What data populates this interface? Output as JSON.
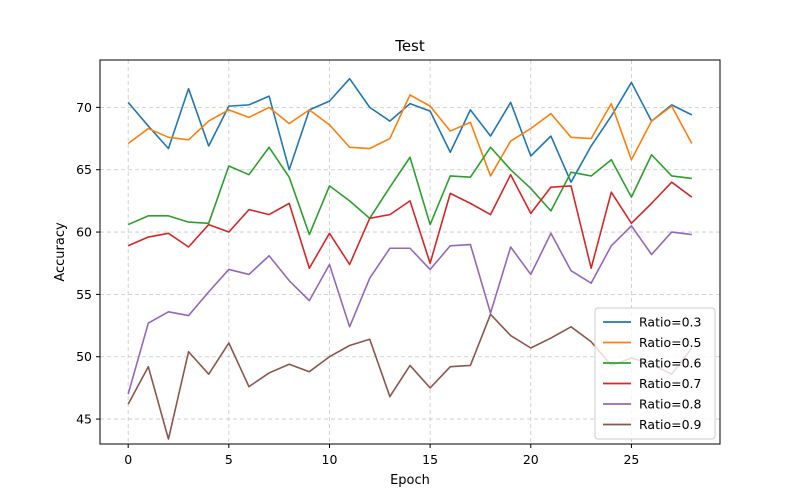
{
  "chart_data": {
    "type": "line",
    "title": "Test",
    "xlabel": "Epoch",
    "ylabel": "Accuracy",
    "xlim": [
      -1.4,
      29.4
    ],
    "ylim": [
      43.0,
      73.8
    ],
    "xticks": [
      0,
      5,
      10,
      15,
      20,
      25
    ],
    "yticks": [
      45,
      50,
      55,
      60,
      65,
      70
    ],
    "grid": true,
    "legend_position": "lower-right",
    "x": [
      0,
      1,
      2,
      3,
      4,
      5,
      6,
      7,
      8,
      9,
      10,
      11,
      12,
      13,
      14,
      15,
      16,
      17,
      18,
      19,
      20,
      21,
      22,
      23,
      24,
      25,
      26,
      27,
      28
    ],
    "series": [
      {
        "name": "Ratio=0.3",
        "color": "#1f77b4",
        "values": [
          70.4,
          68.5,
          66.7,
          71.5,
          66.9,
          70.1,
          70.2,
          70.9,
          65.0,
          69.8,
          70.5,
          72.3,
          70.0,
          68.9,
          70.3,
          69.7,
          66.4,
          69.8,
          67.7,
          70.4,
          66.1,
          67.7,
          64.0,
          66.9,
          69.3,
          72.0,
          68.9,
          70.2,
          69.4
        ]
      },
      {
        "name": "Ratio=0.5",
        "color": "#ff7f0e",
        "values": [
          67.1,
          68.3,
          67.6,
          67.4,
          68.9,
          69.8,
          69.2,
          70.0,
          68.7,
          69.8,
          68.6,
          66.8,
          66.7,
          67.5,
          71.0,
          70.1,
          68.1,
          68.8,
          64.5,
          67.3,
          68.3,
          69.5,
          67.6,
          67.5,
          70.3,
          65.8,
          68.9,
          70.1,
          67.1
        ]
      },
      {
        "name": "Ratio=0.6",
        "color": "#2ca02c",
        "values": [
          60.6,
          61.3,
          61.3,
          60.8,
          60.7,
          65.3,
          64.6,
          66.8,
          64.4,
          59.8,
          63.7,
          62.5,
          61.1,
          63.6,
          66.0,
          60.6,
          64.5,
          64.4,
          66.8,
          65.0,
          63.5,
          61.7,
          64.8,
          64.5,
          65.8,
          62.8,
          66.2,
          64.5,
          64.3
        ]
      },
      {
        "name": "Ratio=0.7",
        "color": "#d62728",
        "values": [
          58.9,
          59.6,
          59.9,
          58.8,
          60.6,
          60.0,
          61.8,
          61.4,
          62.3,
          57.1,
          59.9,
          57.4,
          61.1,
          61.4,
          62.5,
          57.5,
          63.1,
          62.3,
          61.4,
          64.6,
          61.5,
          63.6,
          63.7,
          57.1,
          63.2,
          60.7,
          62.3,
          64.0,
          62.8
        ]
      },
      {
        "name": "Ratio=0.8",
        "color": "#9467bd",
        "values": [
          47.0,
          52.7,
          53.6,
          53.3,
          55.2,
          57.0,
          56.6,
          58.1,
          56.1,
          54.5,
          57.4,
          52.4,
          56.3,
          58.7,
          58.7,
          57.0,
          58.9,
          59.0,
          53.5,
          58.8,
          56.6,
          59.9,
          56.9,
          55.9,
          58.9,
          60.5,
          58.2,
          60.0,
          59.8
        ]
      },
      {
        "name": "Ratio=0.9",
        "color": "#8c564b",
        "values": [
          46.2,
          49.2,
          43.4,
          50.4,
          48.6,
          51.1,
          47.6,
          48.7,
          49.4,
          48.8,
          50.0,
          50.9,
          51.4,
          46.8,
          49.3,
          47.5,
          49.2,
          49.3,
          53.4,
          51.7,
          50.7,
          51.5,
          52.4,
          51.2,
          49.3,
          49.9,
          49.4,
          48.6,
          50.7
        ]
      }
    ]
  }
}
